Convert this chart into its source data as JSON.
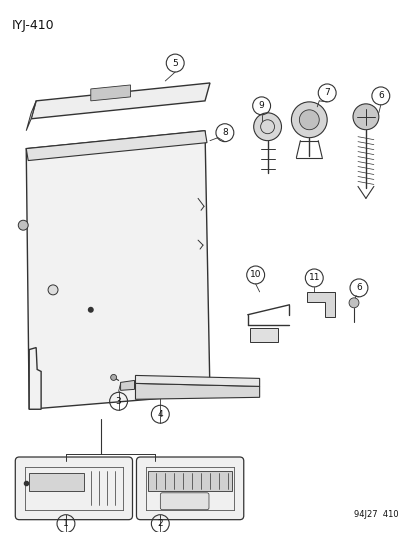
{
  "title": "IYJ-410",
  "footer": "94J27  410",
  "background_color": "#ffffff",
  "line_color": "#333333",
  "label_color": "#111111",
  "fig_width": 4.14,
  "fig_height": 5.33,
  "dpi": 100
}
